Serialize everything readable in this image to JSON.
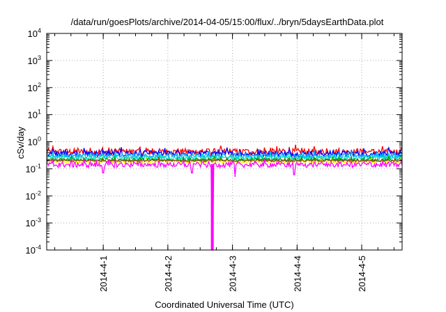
{
  "chart_data": {
    "type": "line",
    "title": "/data/run/goesPlots/archive/2014-04-05/15:00/flux/../bryn/5daysEarthData.plot",
    "xlabel": "Coordinated Universal Time (UTC)",
    "ylabel": "cSv/day",
    "yscale": "log",
    "ylim": [
      0.0001,
      10000
    ],
    "xlim": [
      "2014-03-31T03:00",
      "2014-04-05T15:00"
    ],
    "grid": true,
    "y_ticks": [
      {
        "base": "10",
        "exp": "-4",
        "value": 0.0001
      },
      {
        "base": "10",
        "exp": "-3",
        "value": 0.001
      },
      {
        "base": "10",
        "exp": "-2",
        "value": 0.01
      },
      {
        "base": "10",
        "exp": "-1",
        "value": 0.1
      },
      {
        "base": "10",
        "exp": "0",
        "value": 1
      },
      {
        "base": "10",
        "exp": "1",
        "value": 10
      },
      {
        "base": "10",
        "exp": "2",
        "value": 100
      },
      {
        "base": "10",
        "exp": "3",
        "value": 1000
      },
      {
        "base": "10",
        "exp": "4",
        "value": 10000
      }
    ],
    "x_ticks": [
      {
        "label": "2014-4-1",
        "value": "2014-04-01T00:00"
      },
      {
        "label": "2014-4-2",
        "value": "2014-04-02T00:00"
      },
      {
        "label": "2014-4-3",
        "value": "2014-04-03T00:00"
      },
      {
        "label": "2014-4-4",
        "value": "2014-04-04T00:00"
      },
      {
        "label": "2014-4-5",
        "value": "2014-04-05T00:00"
      }
    ],
    "series": [
      {
        "color": "#ff0000",
        "level": 0.42,
        "spread": 0.5
      },
      {
        "color": "#0000ff",
        "level": 0.36,
        "spread": 0.45
      },
      {
        "color": "#00b0ff",
        "level": 0.3,
        "spread": 0.35
      },
      {
        "color": "#00e0c0",
        "level": 0.25,
        "spread": 0.3
      },
      {
        "color": "#00a000",
        "level": 0.21,
        "spread": 0.25
      },
      {
        "color": "#ffff00",
        "level": 0.18,
        "spread": 0.2
      },
      {
        "color": "#8b4513",
        "level": 0.2,
        "spread": 0.15
      },
      {
        "color": "#ff00ff",
        "level": 0.14,
        "spread": 0.4
      }
    ],
    "dropouts": [
      {
        "time": "2014-04-02T16:30",
        "value": 0.0001
      },
      {
        "time": "2014-04-02T09:00",
        "value": 0.07
      },
      {
        "time": "2014-04-03T01:00",
        "value": 0.05
      },
      {
        "time": "2014-04-03T23:00",
        "value": 0.06
      },
      {
        "time": "2014-04-01T00:00",
        "value": 0.07
      }
    ]
  }
}
